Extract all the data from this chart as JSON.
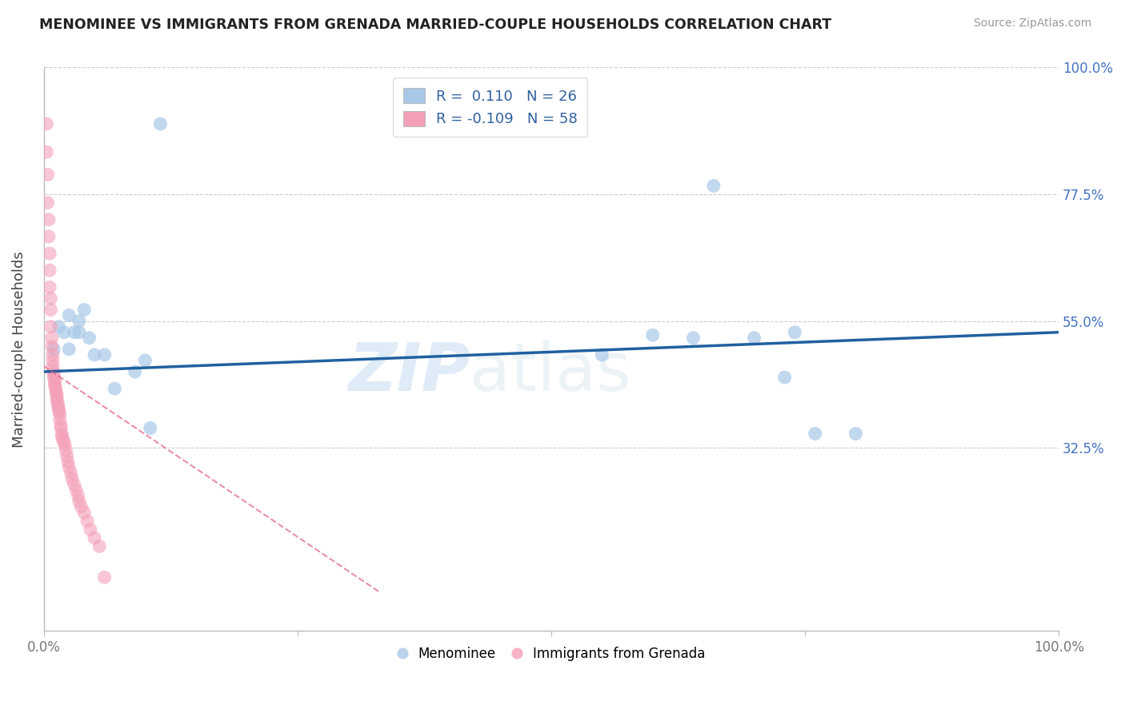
{
  "title": "MENOMINEE VS IMMIGRANTS FROM GRENADA MARRIED-COUPLE HOUSEHOLDS CORRELATION CHART",
  "source": "Source: ZipAtlas.com",
  "ylabel": "Married-couple Households",
  "xlim": [
    0.0,
    1.0
  ],
  "ylim": [
    0.0,
    1.0
  ],
  "ytick_positions": [
    0.325,
    0.55,
    0.775,
    1.0
  ],
  "ytick_labels": [
    "32.5%",
    "55.0%",
    "77.5%",
    "100.0%"
  ],
  "watermark_zip": "ZIP",
  "watermark_atlas": "atlas",
  "blue_color": "#a8c8e8",
  "pink_color": "#f4a0b8",
  "blue_line_color": "#2060a0",
  "pink_line_color": "#e06080",
  "blue_scatter": [
    [
      0.01,
      0.5
    ],
    [
      0.015,
      0.54
    ],
    [
      0.02,
      0.53
    ],
    [
      0.025,
      0.56
    ],
    [
      0.025,
      0.5
    ],
    [
      0.03,
      0.53
    ],
    [
      0.035,
      0.53
    ],
    [
      0.035,
      0.55
    ],
    [
      0.04,
      0.57
    ],
    [
      0.045,
      0.52
    ],
    [
      0.05,
      0.49
    ],
    [
      0.06,
      0.49
    ],
    [
      0.07,
      0.43
    ],
    [
      0.09,
      0.46
    ],
    [
      0.1,
      0.48
    ],
    [
      0.115,
      0.9
    ],
    [
      0.55,
      0.49
    ],
    [
      0.6,
      0.525
    ],
    [
      0.64,
      0.52
    ],
    [
      0.66,
      0.79
    ],
    [
      0.7,
      0.52
    ],
    [
      0.73,
      0.45
    ],
    [
      0.74,
      0.53
    ],
    [
      0.76,
      0.35
    ],
    [
      0.8,
      0.35
    ],
    [
      0.105,
      0.36
    ]
  ],
  "pink_scatter": [
    [
      0.003,
      0.9
    ],
    [
      0.003,
      0.85
    ],
    [
      0.004,
      0.81
    ],
    [
      0.004,
      0.76
    ],
    [
      0.005,
      0.73
    ],
    [
      0.005,
      0.7
    ],
    [
      0.006,
      0.67
    ],
    [
      0.006,
      0.64
    ],
    [
      0.006,
      0.61
    ],
    [
      0.007,
      0.59
    ],
    [
      0.007,
      0.57
    ],
    [
      0.007,
      0.54
    ],
    [
      0.008,
      0.52
    ],
    [
      0.008,
      0.505
    ],
    [
      0.009,
      0.49
    ],
    [
      0.009,
      0.48
    ],
    [
      0.009,
      0.47
    ],
    [
      0.01,
      0.46
    ],
    [
      0.01,
      0.455
    ],
    [
      0.01,
      0.45
    ],
    [
      0.011,
      0.445
    ],
    [
      0.011,
      0.44
    ],
    [
      0.011,
      0.435
    ],
    [
      0.012,
      0.43
    ],
    [
      0.012,
      0.425
    ],
    [
      0.013,
      0.42
    ],
    [
      0.013,
      0.415
    ],
    [
      0.013,
      0.41
    ],
    [
      0.014,
      0.405
    ],
    [
      0.014,
      0.4
    ],
    [
      0.015,
      0.395
    ],
    [
      0.015,
      0.39
    ],
    [
      0.016,
      0.385
    ],
    [
      0.016,
      0.375
    ],
    [
      0.017,
      0.365
    ],
    [
      0.017,
      0.36
    ],
    [
      0.018,
      0.35
    ],
    [
      0.018,
      0.345
    ],
    [
      0.019,
      0.34
    ],
    [
      0.02,
      0.335
    ],
    [
      0.021,
      0.33
    ],
    [
      0.022,
      0.32
    ],
    [
      0.023,
      0.31
    ],
    [
      0.024,
      0.3
    ],
    [
      0.025,
      0.29
    ],
    [
      0.027,
      0.28
    ],
    [
      0.028,
      0.27
    ],
    [
      0.03,
      0.26
    ],
    [
      0.032,
      0.25
    ],
    [
      0.034,
      0.24
    ],
    [
      0.035,
      0.23
    ],
    [
      0.037,
      0.22
    ],
    [
      0.04,
      0.21
    ],
    [
      0.043,
      0.195
    ],
    [
      0.046,
      0.18
    ],
    [
      0.05,
      0.165
    ],
    [
      0.055,
      0.15
    ],
    [
      0.06,
      0.095
    ]
  ],
  "blue_line_x": [
    0.0,
    1.0
  ],
  "blue_line_y": [
    0.46,
    0.53
  ],
  "pink_line_x": [
    0.0,
    0.33
  ],
  "pink_line_y": [
    0.47,
    0.07
  ],
  "background_color": "#ffffff",
  "grid_color": "#cccccc",
  "legend_blue_label": "R =  0.110   N = 26",
  "legend_pink_label": "R = -0.109   N = 58"
}
